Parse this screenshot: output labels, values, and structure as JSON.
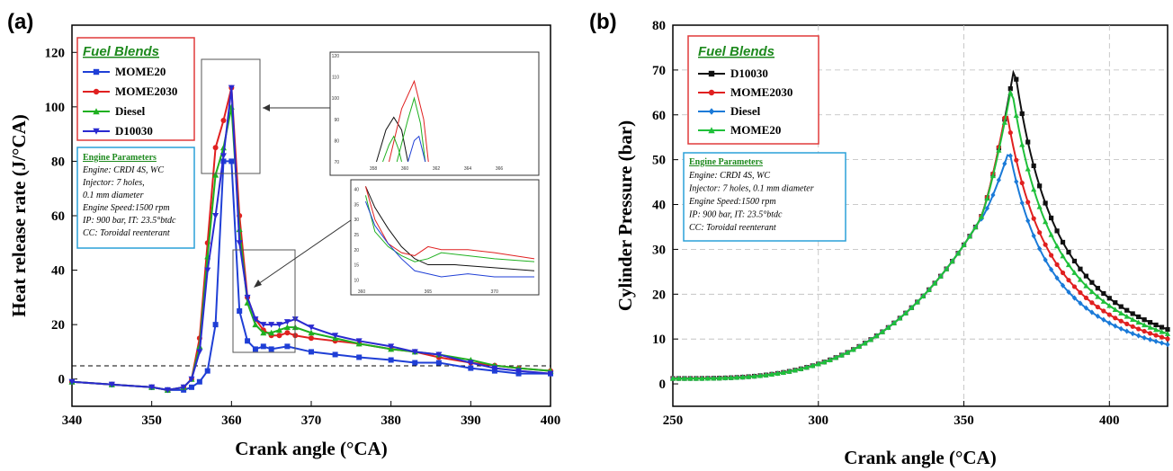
{
  "chart_data": [
    {
      "panel": "(a)",
      "type": "line",
      "xlabel": "Crank angle (°CA)",
      "ylabel": "Heat release rate (J/°CA)",
      "xlim": [
        340,
        400
      ],
      "ylim": [
        -10,
        130
      ],
      "xticks": [
        "340",
        "350",
        "360",
        "370",
        "380",
        "390",
        "400"
      ],
      "yticks": [
        "0",
        "20",
        "40",
        "60",
        "80",
        "100",
        "120"
      ],
      "legend_title": "Fuel Blends",
      "legend_placement": "top-left",
      "series": [
        {
          "name": "MOME20",
          "color": "#1f3fd6",
          "marker": "square",
          "points": [
            [
              340,
              -1
            ],
            [
              345,
              -2
            ],
            [
              350,
              -3
            ],
            [
              352,
              -4
            ],
            [
              354,
              -4
            ],
            [
              355,
              -3
            ],
            [
              356,
              -1
            ],
            [
              357,
              3
            ],
            [
              358,
              20
            ],
            [
              359,
              80
            ],
            [
              360,
              80
            ],
            [
              361,
              25
            ],
            [
              362,
              14
            ],
            [
              363,
              11
            ],
            [
              364,
              12
            ],
            [
              365,
              11
            ],
            [
              367,
              12
            ],
            [
              370,
              10
            ],
            [
              373,
              9
            ],
            [
              376,
              8
            ],
            [
              380,
              7
            ],
            [
              383,
              6
            ],
            [
              386,
              6
            ],
            [
              390,
              4
            ],
            [
              393,
              3
            ],
            [
              396,
              2
            ],
            [
              400,
              2
            ]
          ]
        },
        {
          "name": "MOME2030",
          "color": "#e02020",
          "marker": "circle",
          "points": [
            [
              340,
              -1
            ],
            [
              345,
              -2
            ],
            [
              350,
              -3
            ],
            [
              352,
              -4
            ],
            [
              354,
              -3
            ],
            [
              355,
              0
            ],
            [
              356,
              15
            ],
            [
              357,
              50
            ],
            [
              358,
              85
            ],
            [
              359,
              95
            ],
            [
              360,
              107
            ],
            [
              361,
              60
            ],
            [
              362,
              30
            ],
            [
              363,
              22
            ],
            [
              364,
              18
            ],
            [
              365,
              16
            ],
            [
              366,
              16
            ],
            [
              367,
              17
            ],
            [
              368,
              16
            ],
            [
              370,
              15
            ],
            [
              373,
              14
            ],
            [
              376,
              13
            ],
            [
              380,
              11
            ],
            [
              383,
              10
            ],
            [
              386,
              8
            ],
            [
              390,
              6
            ],
            [
              393,
              5
            ],
            [
              396,
              4
            ],
            [
              400,
              3
            ]
          ]
        },
        {
          "name": "Diesel",
          "color": "#1fb020",
          "marker": "triangle-up",
          "points": [
            [
              340,
              -1
            ],
            [
              345,
              -2
            ],
            [
              350,
              -3
            ],
            [
              352,
              -4
            ],
            [
              354,
              -3
            ],
            [
              355,
              0
            ],
            [
              356,
              12
            ],
            [
              357,
              45
            ],
            [
              358,
              75
            ],
            [
              359,
              85
            ],
            [
              360,
              100
            ],
            [
              361,
              55
            ],
            [
              362,
              28
            ],
            [
              363,
              20
            ],
            [
              364,
              17
            ],
            [
              365,
              17
            ],
            [
              366,
              18
            ],
            [
              367,
              19
            ],
            [
              368,
              19
            ],
            [
              370,
              17
            ],
            [
              373,
              15
            ],
            [
              376,
              13
            ],
            [
              380,
              11
            ],
            [
              383,
              10
            ],
            [
              386,
              9
            ],
            [
              390,
              7
            ],
            [
              393,
              5
            ],
            [
              396,
              4
            ],
            [
              400,
              3
            ]
          ]
        },
        {
          "name": "D10030",
          "color": "#2a2ad0",
          "marker": "triangle-down",
          "points": [
            [
              340,
              -1
            ],
            [
              345,
              -2
            ],
            [
              350,
              -3
            ],
            [
              352,
              -4
            ],
            [
              354,
              -3
            ],
            [
              355,
              0
            ],
            [
              356,
              10
            ],
            [
              357,
              40
            ],
            [
              358,
              60
            ],
            [
              359,
              82
            ],
            [
              360,
              107
            ],
            [
              361,
              50
            ],
            [
              362,
              30
            ],
            [
              363,
              22
            ],
            [
              364,
              20
            ],
            [
              365,
              20
            ],
            [
              366,
              20
            ],
            [
              367,
              21
            ],
            [
              368,
              22
            ],
            [
              370,
              19
            ],
            [
              373,
              16
            ],
            [
              376,
              14
            ],
            [
              380,
              12
            ],
            [
              383,
              10
            ],
            [
              386,
              9
            ],
            [
              390,
              6
            ],
            [
              393,
              4
            ],
            [
              396,
              3
            ],
            [
              400,
              2
            ]
          ]
        }
      ],
      "annotations": {
        "params_title": "Engine Parameters",
        "params": [
          "Engine: CRDI 4S, WC",
          "Injector: 7 holes,",
          "0.1 mm diameter",
          "Engine Speed:1500 rpm",
          "IP: 900 bar, IT: 23.5°btdc",
          "CC: Toroidal reenterant"
        ],
        "inset_top_xticks": [
          "358",
          "360",
          "362",
          "364",
          "366"
        ],
        "inset_top_yticks": [
          "70",
          "80",
          "90",
          "100",
          "110",
          "120"
        ],
        "inset_bottom_xticks": [
          "360",
          "365",
          "370"
        ],
        "inset_bottom_yticks": [
          "10",
          "15",
          "20",
          "25",
          "30",
          "35",
          "40"
        ]
      }
    },
    {
      "panel": "(b)",
      "type": "line",
      "xlabel": "Crank angle (°CA)",
      "ylabel": "Cylinder Pressure (bar)",
      "xlim": [
        250,
        420
      ],
      "ylim": [
        -5,
        80
      ],
      "xticks": [
        "250",
        "300",
        "350",
        "400"
      ],
      "yticks": [
        "0",
        "10",
        "20",
        "30",
        "40",
        "50",
        "60",
        "70",
        "80"
      ],
      "legend_title": "Fuel Blends",
      "legend_placement": "top-left",
      "series": [
        {
          "name": "D10030",
          "color": "#111111",
          "marker": "square",
          "peak": 70.5
        },
        {
          "name": "MOME2030",
          "color": "#e02020",
          "marker": "circle",
          "peak": 61
        },
        {
          "name": "Diesel",
          "color": "#1a7ad8",
          "marker": "diamond",
          "peak": 52
        },
        {
          "name": "MOME20",
          "color": "#1fc03a",
          "marker": "triangle-up",
          "peak": 66
        }
      ],
      "annotations": {
        "params_title": "Engine Parameters",
        "params": [
          "Engine: CRDI 4S, WC",
          "Injector: 7 holes, 0.1 mm diameter",
          "Engine Speed:1500 rpm",
          "IP: 900 bar, IT: 23.5°btdc",
          "CC: Toroidal reenterant"
        ]
      }
    }
  ]
}
